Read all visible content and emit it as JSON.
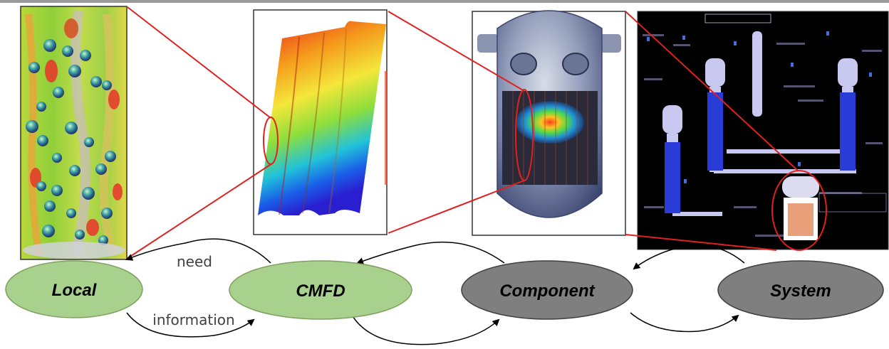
{
  "nodes": [
    {
      "id": "local",
      "label": "Local",
      "fill": "#a9d18e"
    },
    {
      "id": "cmfd",
      "label": "CMFD",
      "fill": "#a9d18e"
    },
    {
      "id": "component",
      "label": "Component",
      "fill": "#7f7f7f"
    },
    {
      "id": "system",
      "label": "System",
      "fill": "#7f7f7f"
    }
  ],
  "edge_labels": {
    "need": "need",
    "information": "information"
  },
  "panels": [
    {
      "id": "bubble-flow-simulation",
      "depicts": "3D two-phase bubbly flow field with colored bubbles"
    },
    {
      "id": "rod-bundle-temperature",
      "depicts": "Rod bundle sub-channel with red-to-blue temperature gradient"
    },
    {
      "id": "reactor-vessel-power",
      "depicts": "Reactor pressure vessel with core power distribution"
    },
    {
      "id": "plant-system-schematic",
      "depicts": "Plant system-code schematic on dark background"
    }
  ],
  "colors": {
    "zoom_lines": "#e0211f",
    "ellipse_green": "#a9d18e",
    "ellipse_gray": "#7f7f7f",
    "arrow": "#000000"
  }
}
